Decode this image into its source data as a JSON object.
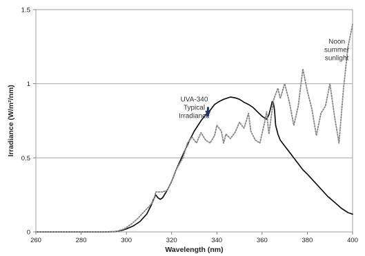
{
  "chart_data": {
    "type": "line",
    "xlabel": "Wavelength (nm)",
    "ylabel": "Irradiance (W/m²/nm)",
    "xlim": [
      260,
      400
    ],
    "ylim": [
      0,
      1.5
    ],
    "xticks": [
      260,
      280,
      300,
      320,
      340,
      360,
      380,
      400
    ],
    "yticks": [
      0,
      0.5,
      1,
      1.5
    ],
    "ytick_labels": [
      "0",
      "0.5",
      "1",
      "1.5"
    ],
    "grid": "horizontal",
    "series": [
      {
        "name": "UVA-340 Typical Irradiance",
        "style": "solid",
        "color": "#111111",
        "x": [
          260,
          290,
          295,
          298,
          300,
          303,
          306,
          309,
          311,
          312,
          313,
          314,
          315,
          316,
          318,
          320,
          322,
          325,
          328,
          330,
          333,
          335,
          337,
          339,
          341,
          343,
          344,
          345,
          346,
          348,
          350,
          352,
          354,
          356,
          358,
          360,
          362,
          363,
          364,
          364.5,
          365,
          365.5,
          366,
          367,
          368,
          370,
          372,
          375,
          378,
          380,
          383,
          386,
          389,
          392,
          395,
          398,
          400
        ],
        "y": [
          0,
          0,
          0.002,
          0.01,
          0.02,
          0.04,
          0.07,
          0.12,
          0.18,
          0.22,
          0.25,
          0.23,
          0.22,
          0.23,
          0.28,
          0.34,
          0.42,
          0.52,
          0.62,
          0.68,
          0.75,
          0.79,
          0.82,
          0.86,
          0.88,
          0.895,
          0.9,
          0.905,
          0.91,
          0.905,
          0.895,
          0.875,
          0.86,
          0.84,
          0.81,
          0.78,
          0.76,
          0.79,
          0.85,
          0.88,
          0.87,
          0.82,
          0.72,
          0.66,
          0.62,
          0.58,
          0.54,
          0.48,
          0.42,
          0.39,
          0.34,
          0.29,
          0.24,
          0.2,
          0.16,
          0.13,
          0.12
        ]
      },
      {
        "name": "Noon summer sunlight",
        "style": "dotted",
        "color": "#8a8a8a",
        "x": [
          260,
          293,
          296,
          299,
          302,
          305,
          308,
          310,
          312,
          313,
          314,
          316,
          318,
          320,
          322,
          325,
          327,
          329,
          331,
          333,
          335,
          337,
          339,
          340,
          342,
          343,
          344,
          346,
          348,
          350,
          352,
          354,
          355,
          357,
          359,
          361,
          362,
          363,
          365,
          367,
          368,
          370,
          372,
          374,
          376,
          378,
          380,
          382,
          384,
          386,
          388,
          390,
          392,
          394,
          396,
          398,
          400
        ],
        "y": [
          0,
          0,
          0.005,
          0.02,
          0.05,
          0.09,
          0.14,
          0.17,
          0.21,
          0.27,
          0.27,
          0.27,
          0.28,
          0.34,
          0.42,
          0.5,
          0.6,
          0.64,
          0.6,
          0.67,
          0.62,
          0.6,
          0.65,
          0.72,
          0.68,
          0.6,
          0.66,
          0.63,
          0.67,
          0.74,
          0.7,
          0.8,
          0.68,
          0.62,
          0.6,
          0.73,
          0.81,
          0.66,
          0.89,
          0.97,
          0.9,
          1.0,
          0.88,
          0.72,
          0.85,
          1.1,
          0.95,
          0.83,
          0.65,
          0.8,
          0.85,
          1.0,
          0.78,
          0.6,
          0.97,
          1.25,
          1.4
        ]
      }
    ],
    "annotations": [
      {
        "lines": [
          "UVA-340",
          "Typical",
          "Irradiance"
        ],
        "x": 330,
        "y": 0.88,
        "arrow_to": [
          336,
          0.78
        ]
      },
      {
        "lines": [
          "Noon",
          "summer",
          "sunlight"
        ],
        "x": 393,
        "y": 1.27
      }
    ]
  }
}
